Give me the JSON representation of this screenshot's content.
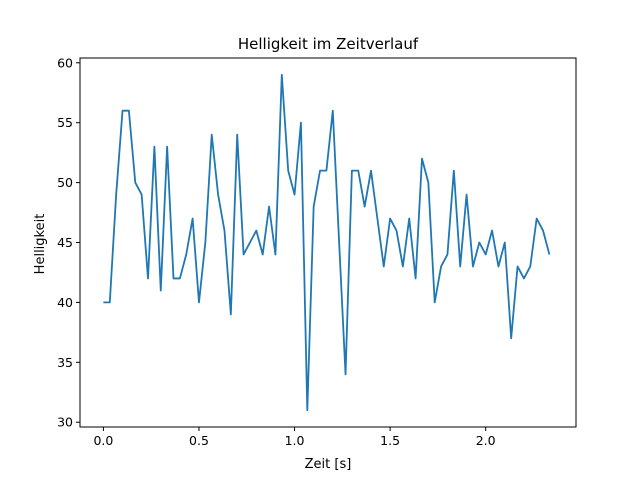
{
  "chart_data": {
    "type": "line",
    "title": "Helligkeit im Zeitverlauf",
    "xlabel": "Zeit [s]",
    "ylabel": "Helligkeit",
    "xlim": [
      -0.1225,
      2.4725
    ],
    "ylim": [
      29.6,
      60.4
    ],
    "grid": false,
    "xticks": [
      0.0,
      0.5,
      1.0,
      1.5,
      2.0
    ],
    "xtick_labels": [
      "0.0",
      "0.5",
      "1.0",
      "1.5",
      "2.0"
    ],
    "yticks": [
      30,
      35,
      40,
      45,
      50,
      55,
      60
    ],
    "ytick_labels": [
      "30",
      "35",
      "40",
      "45",
      "50",
      "55",
      "60"
    ],
    "series": [
      {
        "color": "#1f77b4",
        "x": [
          0.0,
          0.0333,
          0.0667,
          0.1,
          0.1333,
          0.1667,
          0.2,
          0.2333,
          0.2667,
          0.3,
          0.3333,
          0.3667,
          0.4,
          0.4333,
          0.4667,
          0.5,
          0.5333,
          0.5667,
          0.6,
          0.6333,
          0.6667,
          0.7,
          0.7333,
          0.7667,
          0.8,
          0.8333,
          0.8667,
          0.9,
          0.9333,
          0.9667,
          1.0,
          1.0333,
          1.0667,
          1.1,
          1.1333,
          1.1667,
          1.2,
          1.2333,
          1.2667,
          1.3,
          1.3333,
          1.3667,
          1.4,
          1.4333,
          1.4667,
          1.5,
          1.5333,
          1.5667,
          1.6,
          1.6333,
          1.6667,
          1.7,
          1.7333,
          1.7667,
          1.8,
          1.8333,
          1.8667,
          1.9,
          1.9333,
          1.9667,
          2.0,
          2.0333,
          2.0667,
          2.1,
          2.1333,
          2.1667,
          2.2,
          2.2333,
          2.2667,
          2.3,
          2.3333
        ],
        "y": [
          40,
          40,
          49,
          56,
          56,
          50,
          49,
          42,
          53,
          41,
          53,
          42,
          42,
          44,
          47,
          40,
          45,
          54,
          49,
          46,
          39,
          54,
          44,
          45,
          46,
          44,
          48,
          44,
          59,
          51,
          49,
          55,
          31,
          48,
          51,
          51,
          56,
          45,
          34,
          51,
          51,
          48,
          51,
          47,
          43,
          47,
          46,
          43,
          47,
          42,
          52,
          50,
          40,
          43,
          44,
          51,
          43,
          49,
          43,
          45,
          44,
          46,
          43,
          45,
          37,
          43,
          42,
          43,
          47,
          46,
          44
        ]
      }
    ]
  }
}
